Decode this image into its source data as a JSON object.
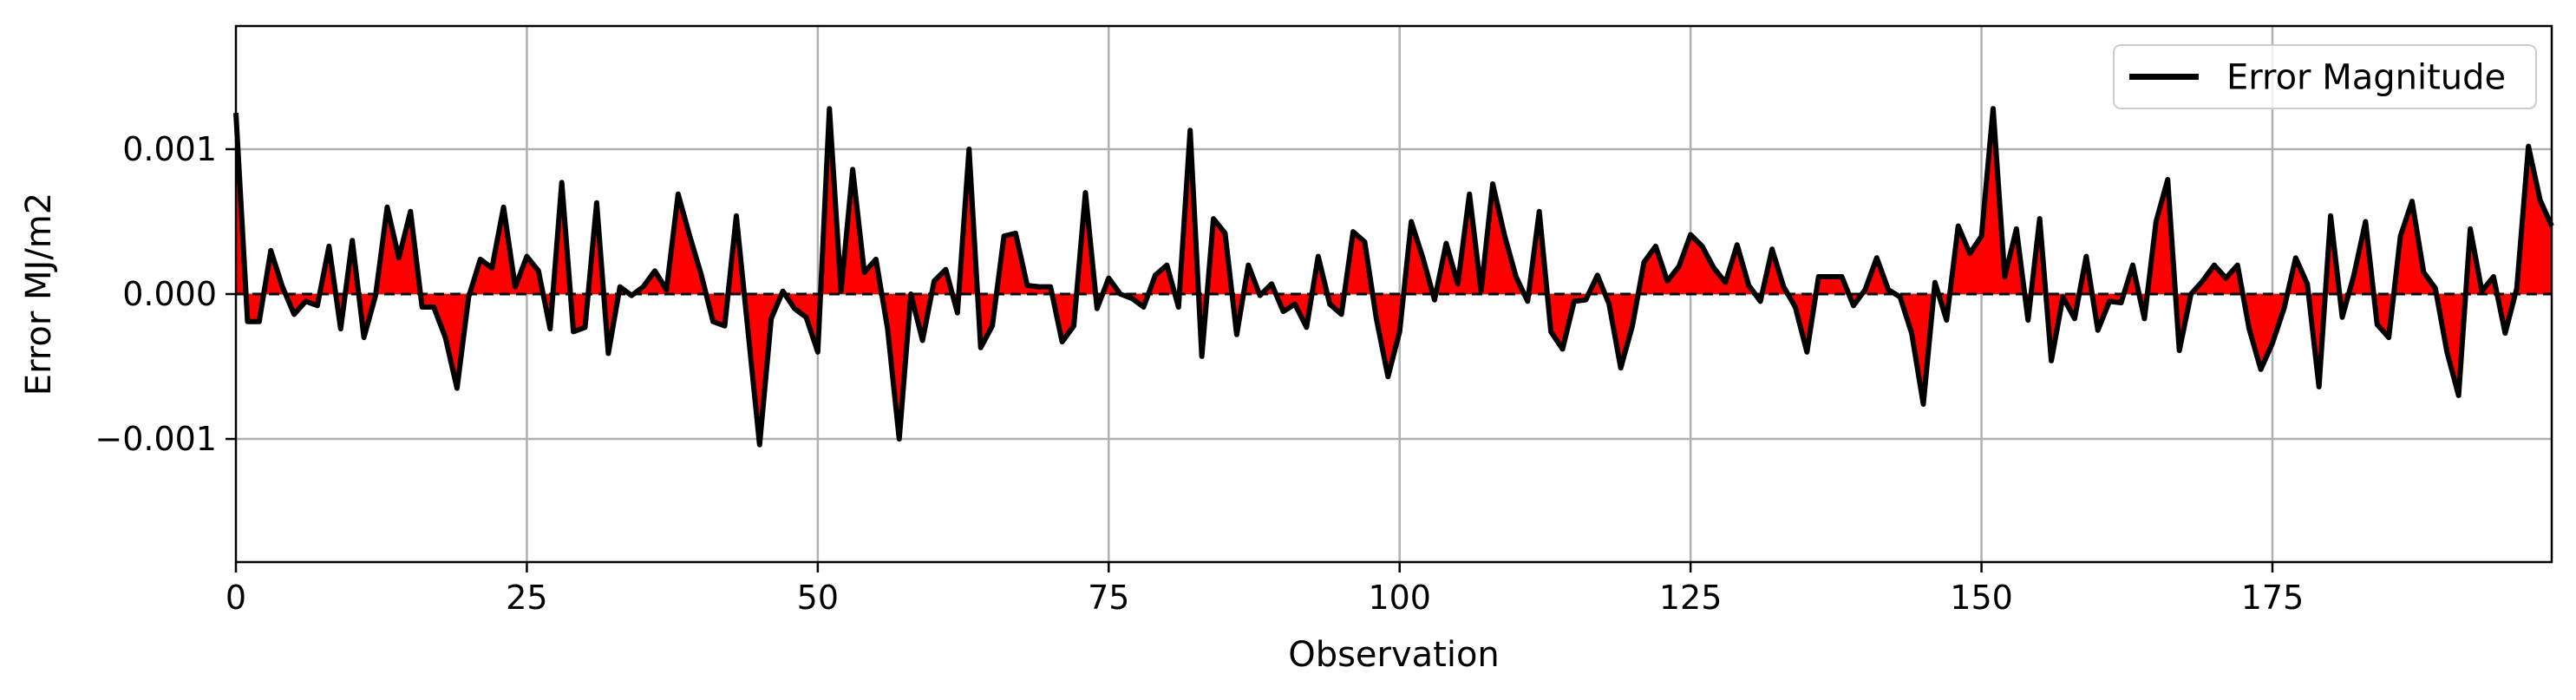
{
  "chart_data": {
    "type": "area",
    "title": "",
    "xlabel": "Observation",
    "ylabel": "Error MJ/m2",
    "xlim": [
      0,
      199
    ],
    "ylim": [
      -0.00185,
      0.00185
    ],
    "x_ticks": [
      0,
      25,
      50,
      75,
      100,
      125,
      150,
      175
    ],
    "x_tick_labels": [
      "0",
      "25",
      "50",
      "75",
      "100",
      "125",
      "150",
      "175"
    ],
    "y_ticks": [
      -0.001,
      0.0,
      0.001
    ],
    "y_tick_labels": [
      "−0.001",
      "0.000",
      "0.001"
    ],
    "grid": true,
    "legend_position": "top-right",
    "reference_line": 0,
    "colors": {
      "line": "#000000",
      "fill": "#ff0000",
      "grid": "#b0b0b0",
      "zero_line": "#000000"
    },
    "series": [
      {
        "name": "Error Magnitude",
        "values": [
          0.00125,
          -0.00019,
          -0.00019,
          0.0003,
          5e-05,
          -0.00014,
          -5e-05,
          -8e-05,
          0.00033,
          -0.00024,
          0.00037,
          -0.0003,
          -1e-05,
          0.0006,
          0.00025,
          0.00057,
          -9e-05,
          -9e-05,
          -0.0003,
          -0.00065,
          -2e-05,
          0.00024,
          0.00018,
          0.0006,
          5e-05,
          0.00026,
          0.00016,
          -0.00024,
          0.00077,
          -0.00026,
          -0.00023,
          0.00063,
          -0.00041,
          5e-05,
          -1e-05,
          5e-05,
          0.00016,
          3e-05,
          0.00069,
          0.0004,
          0.00013,
          -0.00019,
          -0.00022,
          0.00054,
          -0.00025,
          -0.00104,
          -0.00017,
          2e-05,
          -0.0001,
          -0.00016,
          -0.0004,
          0.00128,
          2e-05,
          0.00086,
          0.00015,
          0.00024,
          -0.00024,
          -0.001,
          0.0,
          -0.00032,
          9e-05,
          0.00017,
          -0.00013,
          0.001,
          -0.00037,
          -0.00022,
          0.0004,
          0.00042,
          6e-05,
          5e-05,
          5e-05,
          -0.00033,
          -0.00022,
          0.0007,
          -0.0001,
          0.00011,
          0.0,
          -3e-05,
          -9e-05,
          0.00013,
          0.0002,
          -9e-05,
          0.00113,
          -0.00043,
          0.00052,
          0.00042,
          -0.00028,
          0.0002,
          -1e-05,
          7e-05,
          -0.00012,
          -7e-05,
          -0.00023,
          0.00026,
          -7e-05,
          -0.00014,
          0.00043,
          0.00036,
          -0.00017,
          -0.00057,
          -0.00026,
          0.0005,
          0.00025,
          -4e-05,
          0.00035,
          7e-05,
          0.00069,
          2e-05,
          0.00076,
          0.00041,
          0.00012,
          -5e-05,
          0.00057,
          -0.00026,
          -0.00038,
          -5e-05,
          -4e-05,
          0.00013,
          -7e-05,
          -0.00051,
          -0.00022,
          0.00022,
          0.00033,
          9e-05,
          0.00019,
          0.00041,
          0.00033,
          0.00018,
          8e-05,
          0.00034,
          6e-05,
          -5e-05,
          0.00031,
          5e-05,
          -9e-05,
          -0.0004,
          0.00012,
          0.00012,
          0.00012,
          -8e-05,
          3e-05,
          0.00025,
          3e-05,
          -2e-05,
          -0.00027,
          -0.00076,
          8e-05,
          -0.00018,
          0.00047,
          0.00028,
          0.0004,
          0.00128,
          0.00012,
          0.00045,
          -0.00018,
          0.00052,
          -0.00046,
          -2e-05,
          -0.00017,
          0.00026,
          -0.00025,
          -5e-05,
          -6e-05,
          0.0002,
          -0.00017,
          0.0005,
          0.00079,
          -0.00039,
          0.0,
          9e-05,
          0.0002,
          0.00011,
          0.0002,
          -0.00024,
          -0.00052,
          -0.00034,
          -0.0001,
          0.00025,
          7e-05,
          -0.00064,
          0.00054,
          -0.00016,
          0.00013,
          0.0005,
          -0.00021,
          -0.0003,
          0.0004,
          0.00064,
          0.00015,
          4e-05,
          -0.0004,
          -0.0007,
          0.00045,
          2e-05,
          0.00012,
          -0.00027,
          4e-05,
          0.00102,
          0.00065,
          0.00047
        ]
      }
    ]
  }
}
